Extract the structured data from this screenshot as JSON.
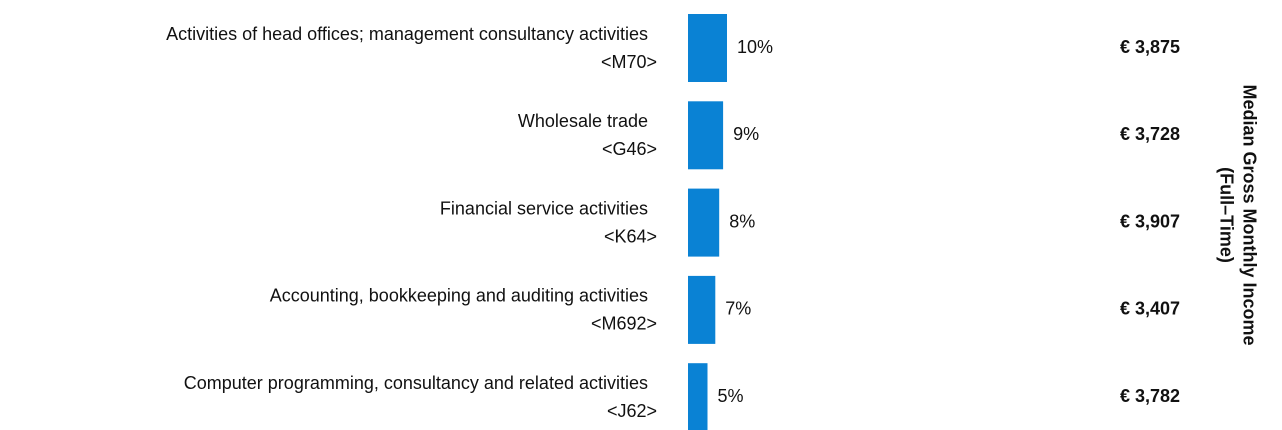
{
  "chart_data": {
    "type": "bar",
    "orientation": "horizontal",
    "categories": [
      "Activities of head offices; management consultancy activities",
      "Wholesale trade",
      "Financial service activities",
      "Accounting, bookkeeping and auditing activities",
      "Computer programming, consultancy and related activities"
    ],
    "codes": [
      "<M70>",
      "<G46>",
      "<K64>",
      "<M692>",
      "<J62>"
    ],
    "values": [
      10,
      9,
      8,
      7,
      5
    ],
    "value_labels": [
      "10%",
      "9%",
      "8%",
      "7%",
      "5%"
    ],
    "color": "#0a82d4",
    "income": [
      3875,
      3728,
      3907,
      3407,
      3782
    ],
    "income_labels": [
      "€ 3,875",
      "€ 3,728",
      "€ 3,907",
      "€ 3,407",
      "€ 3,782"
    ],
    "income_color": "#1a8ddb",
    "y2_label": [
      "Median Gross Monthly Income",
      "(Full–Time)"
    ]
  }
}
